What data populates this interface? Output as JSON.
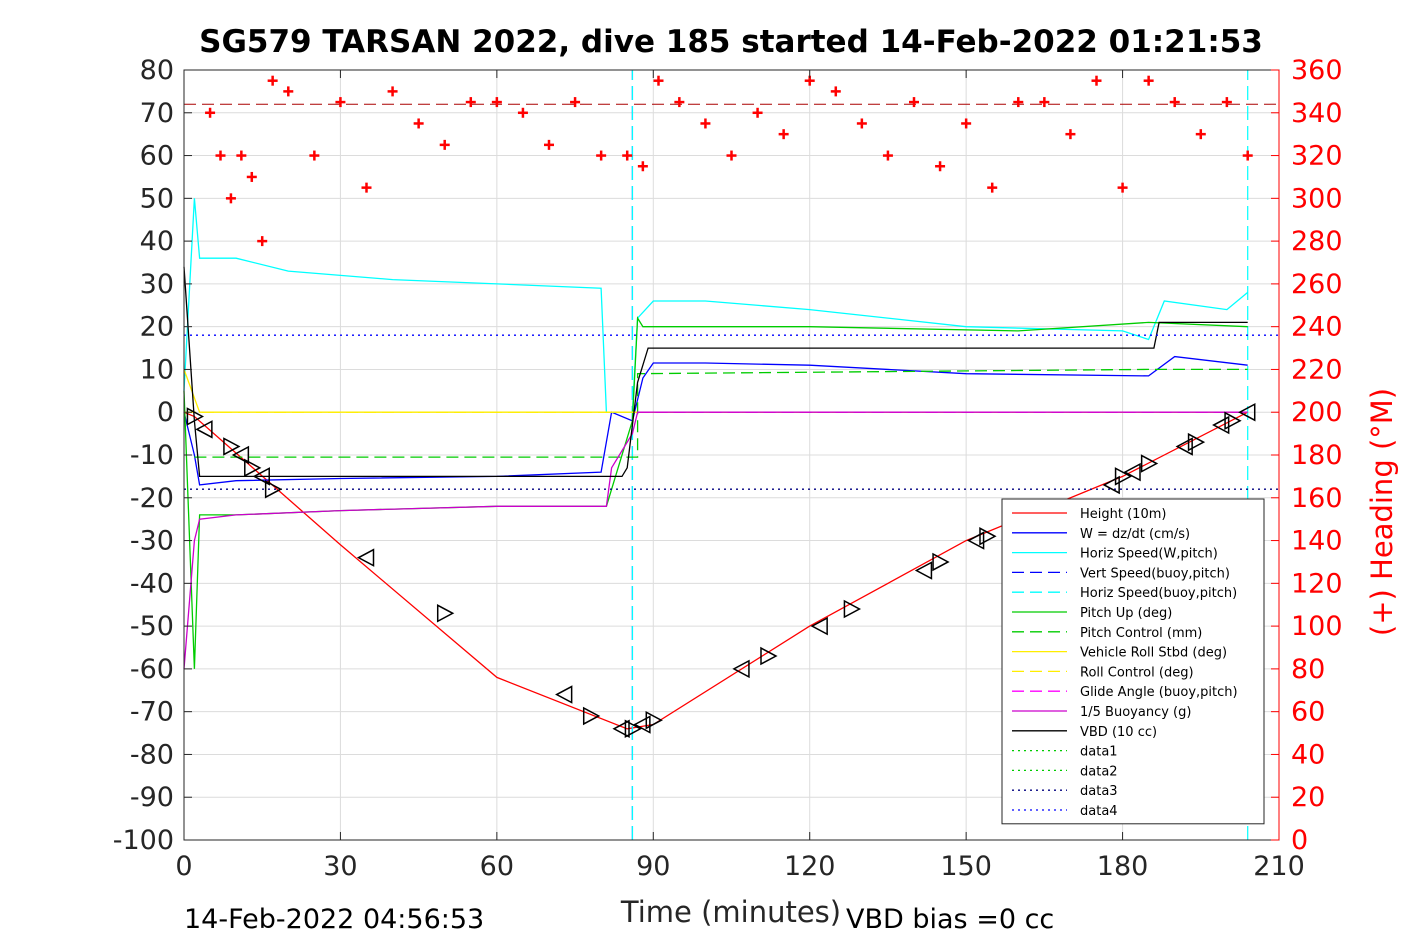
{
  "chart_data": {
    "type": "line",
    "title": "SG579 TARSAN 2022, dive 185 started 14-Feb-2022 01:21:53",
    "xlabel": "Time (minutes)",
    "ylabel_right": "(+) Heading (°M)",
    "footer_left": "14-Feb-2022 04:56:53",
    "footer_right": "VBD bias =0 cc",
    "xlim": [
      0,
      210
    ],
    "ylim": [
      -100,
      80
    ],
    "ylim_right": [
      0,
      360
    ],
    "x_ticks": [
      "0",
      "30",
      "60",
      "90",
      "120",
      "150",
      "180",
      "210"
    ],
    "y_ticks": [
      "80",
      "70",
      "60",
      "50",
      "40",
      "30",
      "20",
      "10",
      "0",
      "-10",
      "-20",
      "-30",
      "-40",
      "-50",
      "-60",
      "-70",
      "-80",
      "-90",
      "-100"
    ],
    "y_ticks_right": [
      "360",
      "340",
      "320",
      "300",
      "280",
      "260",
      "240",
      "220",
      "200",
      "180",
      "160",
      "140",
      "120",
      "100",
      "80",
      "60",
      "40",
      "20",
      "0"
    ],
    "grid": true,
    "legend_position": "bottom-right",
    "series": [
      {
        "name": "Height (10m)",
        "color": "#ff0000",
        "style": "solid",
        "x": [
          0,
          2,
          30,
          60,
          85,
          90,
          120,
          150,
          180,
          204
        ],
        "y": [
          0,
          -1,
          -31,
          -62,
          -74,
          -73,
          -50,
          -30,
          -15,
          0
        ]
      },
      {
        "name": "W = dz/dt (cm/s)",
        "color": "#0000ff",
        "style": "solid",
        "x": [
          0,
          2,
          3,
          10,
          30,
          60,
          80,
          82,
          86,
          88,
          90,
          100,
          120,
          150,
          185,
          190,
          204
        ],
        "y": [
          0,
          -10,
          -17,
          -16,
          -15.5,
          -15,
          -14,
          0,
          -2,
          8,
          11.5,
          11.5,
          11,
          9,
          8.5,
          13,
          11
        ]
      },
      {
        "name": "Horiz Speed(W,pitch)",
        "color": "#00ffff",
        "style": "solid",
        "x": [
          0,
          2,
          3,
          10,
          20,
          40,
          60,
          80,
          81,
          86,
          87,
          90,
          100,
          120,
          150,
          180,
          185,
          188,
          200,
          204
        ],
        "y": [
          5,
          50,
          36,
          36,
          33,
          31,
          30,
          29,
          0,
          0,
          22,
          26,
          26,
          24,
          20,
          19,
          17,
          26,
          24,
          28
        ]
      },
      {
        "name": "Vert Speed(buoy,pitch)",
        "color": "#0000ff",
        "style": "dash",
        "x": [
          86,
          86
        ],
        "y": [
          -100,
          80
        ]
      },
      {
        "name": "Horiz Speed(buoy,pitch)",
        "color": "#00ffff",
        "style": "dash",
        "x": [
          86,
          86,
          204,
          204
        ],
        "y": [
          -100,
          80,
          -100,
          80
        ]
      },
      {
        "name": "Pitch Up (deg)",
        "color": "#00cc00",
        "style": "solid",
        "x": [
          0,
          2,
          3,
          10,
          30,
          60,
          81,
          86,
          87,
          88,
          90,
          120,
          160,
          185,
          204
        ],
        "y": [
          5,
          -60,
          -24,
          -24,
          -23,
          -22,
          -22,
          -2,
          22,
          20,
          20,
          20,
          19,
          21,
          20
        ]
      },
      {
        "name": "Pitch Control (mm)",
        "color": "#00cc00",
        "style": "dash",
        "x": [
          2,
          87,
          87,
          185,
          204
        ],
        "y": [
          -10.5,
          -10.5,
          9,
          10,
          10
        ]
      },
      {
        "name": "Vehicle Roll Stbd (deg)",
        "color": "#ffee00",
        "style": "solid",
        "x": [
          0,
          3,
          10,
          80,
          82,
          86,
          90,
          200,
          204
        ],
        "y": [
          10,
          0,
          0,
          0,
          0,
          0,
          0,
          0,
          0
        ]
      },
      {
        "name": "Roll Control (deg)",
        "color": "#ffee00",
        "style": "dash",
        "x": [
          0,
          204
        ],
        "y": [
          0,
          0
        ]
      },
      {
        "name": "Glide Angle (buoy,pitch)",
        "color": "#ff00ff",
        "style": "dash",
        "x": [
          87,
          204
        ],
        "y": [
          0,
          0
        ]
      },
      {
        "name": "1/5 Buoyancy (g)",
        "color": "#cc00cc",
        "style": "solid",
        "x": [
          0,
          2,
          3,
          10,
          30,
          60,
          81,
          82,
          86,
          87,
          204
        ],
        "y": [
          -60,
          -30,
          -25,
          -24,
          -23,
          -22,
          -22,
          -13,
          -5,
          0,
          0
        ]
      },
      {
        "name": "VBD (10 cc)",
        "color": "#000000",
        "style": "solid",
        "x": [
          0,
          2,
          3,
          30,
          60,
          84,
          85,
          87,
          89,
          120,
          150,
          186,
          187,
          204
        ],
        "y": [
          34,
          -2,
          -15,
          -15,
          -15,
          -15,
          -13,
          7,
          15,
          15,
          15,
          15,
          21,
          21
        ]
      },
      {
        "name": "data1",
        "color": "#00cc00",
        "style": "dot",
        "x": [],
        "y": []
      },
      {
        "name": "data2",
        "color": "#00cc00",
        "style": "dot",
        "x": [],
        "y": []
      },
      {
        "name": "data3",
        "color": "#000080",
        "style": "dot",
        "x": [
          0,
          210
        ],
        "y": [
          -18,
          -18
        ]
      },
      {
        "name": "data4",
        "color": "#0000ff",
        "style": "dot",
        "x": [
          0,
          210
        ],
        "y": [
          18,
          18
        ]
      }
    ],
    "heading": {
      "name": "(+) Heading (°M)",
      "color": "#ff0000",
      "marker": "+",
      "mean": 344,
      "x": [
        5,
        7,
        9,
        11,
        13,
        15,
        17,
        20,
        25,
        30,
        35,
        40,
        45,
        50,
        55,
        60,
        65,
        70,
        75,
        80,
        85,
        88,
        91,
        95,
        100,
        105,
        110,
        115,
        120,
        125,
        130,
        135,
        140,
        145,
        150,
        155,
        160,
        165,
        170,
        175,
        180,
        185,
        190,
        195,
        200,
        204
      ],
      "y": [
        340,
        320,
        300,
        320,
        310,
        280,
        355,
        350,
        320,
        345,
        305,
        350,
        335,
        325,
        345,
        345,
        340,
        325,
        345,
        320,
        320,
        315,
        355,
        345,
        335,
        320,
        340,
        330,
        355,
        350,
        335,
        320,
        345,
        315,
        335,
        305,
        345,
        345,
        330,
        355,
        305,
        355,
        345,
        330,
        345,
        320
      ]
    },
    "markers": {
      "x": [
        2,
        4,
        9,
        11,
        13,
        15,
        17,
        35,
        50,
        73,
        78,
        84,
        86,
        88,
        90,
        107,
        112,
        122,
        128,
        142,
        145,
        152,
        154,
        178,
        180,
        182,
        185,
        192,
        194,
        199,
        201,
        204
      ],
      "y": [
        -1,
        -4,
        -8,
        -10,
        -13,
        -15,
        -18,
        -34,
        -47,
        -66,
        -71,
        -74,
        -74,
        -73,
        -72,
        -60,
        -57,
        -50,
        -46,
        -37,
        -35,
        -30,
        -29,
        -17,
        -15,
        -14,
        -12,
        -8,
        -7,
        -3,
        -2,
        0
      ]
    }
  },
  "colors": {
    "axis": "#262626",
    "heading": "#ff0000"
  }
}
